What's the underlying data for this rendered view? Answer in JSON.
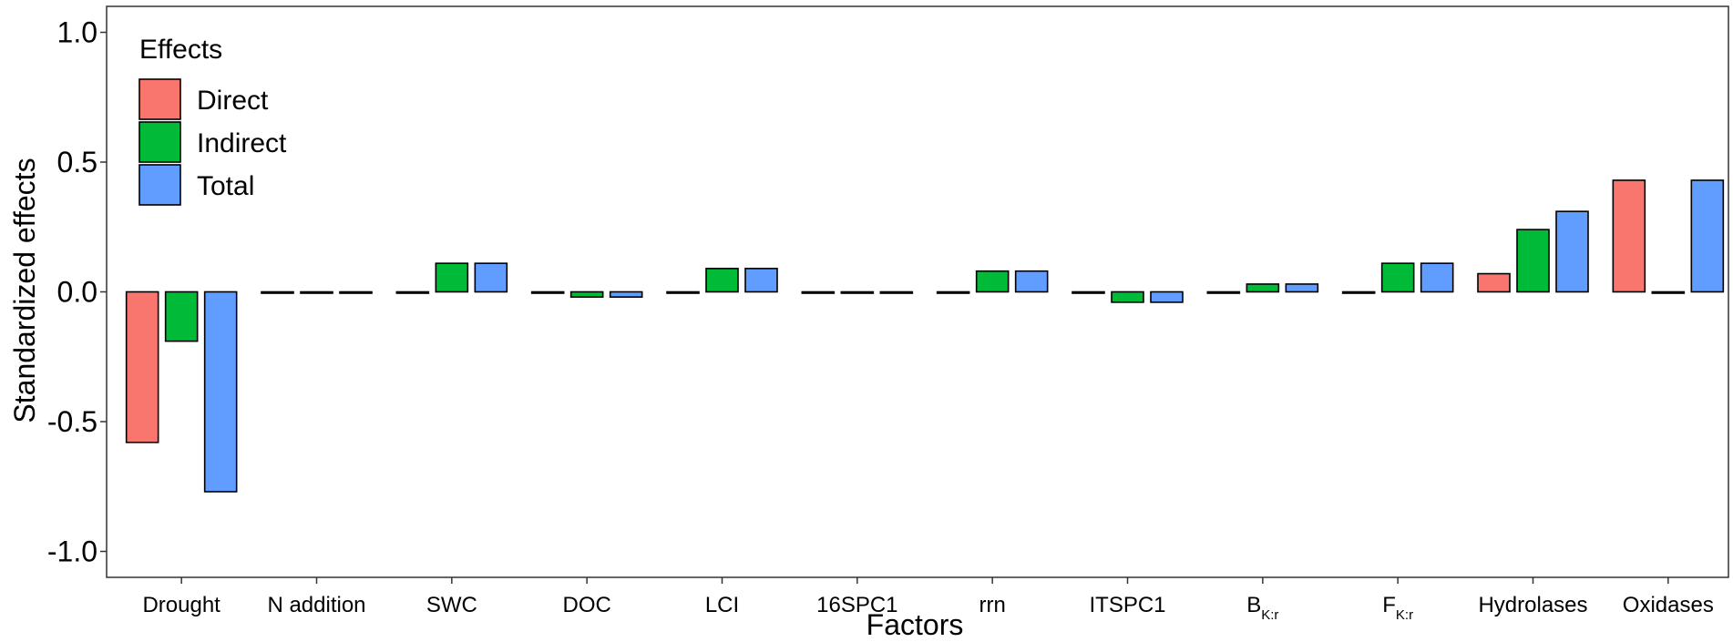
{
  "chart_data": {
    "type": "bar",
    "xlabel": "Factors",
    "ylabel": "Standardized effects",
    "ylim": [
      -1.1,
      1.1
    ],
    "yticks": [
      "1.0",
      "0.5",
      "0.0",
      "-0.5",
      "-1.0"
    ],
    "ytick_values": [
      1.0,
      0.5,
      0.0,
      -0.5,
      -1.0
    ],
    "grid": false,
    "legend": {
      "title": "Effects",
      "position": "top-left"
    },
    "categories": [
      {
        "main": "Drought",
        "sub": ""
      },
      {
        "main": "N addition",
        "sub": ""
      },
      {
        "main": "SWC",
        "sub": ""
      },
      {
        "main": "DOC",
        "sub": ""
      },
      {
        "main": "LCI",
        "sub": ""
      },
      {
        "main": "16SPC1",
        "sub": ""
      },
      {
        "main": "rrn",
        "sub": ""
      },
      {
        "main": "ITSPC1",
        "sub": ""
      },
      {
        "main": "B",
        "sub": "K:r"
      },
      {
        "main": "F",
        "sub": "K:r"
      },
      {
        "main": "Hydrolases",
        "sub": ""
      },
      {
        "main": "Oxidases",
        "sub": ""
      }
    ],
    "series": [
      {
        "name": "Direct",
        "color": "#F8766D",
        "values": [
          -0.58,
          0.0,
          0.0,
          0.0,
          0.0,
          0.0,
          0.0,
          0.0,
          0.0,
          0.0,
          0.07,
          0.43
        ]
      },
      {
        "name": "Indirect",
        "color": "#00BA38",
        "values": [
          -0.19,
          0.0,
          0.11,
          -0.02,
          0.09,
          0.0,
          0.08,
          -0.04,
          0.03,
          0.11,
          0.24,
          0.0
        ]
      },
      {
        "name": "Total",
        "color": "#619CFF",
        "values": [
          -0.77,
          0.0,
          0.11,
          -0.02,
          0.09,
          0.0,
          0.08,
          -0.04,
          0.03,
          0.11,
          0.31,
          0.43
        ]
      }
    ]
  }
}
